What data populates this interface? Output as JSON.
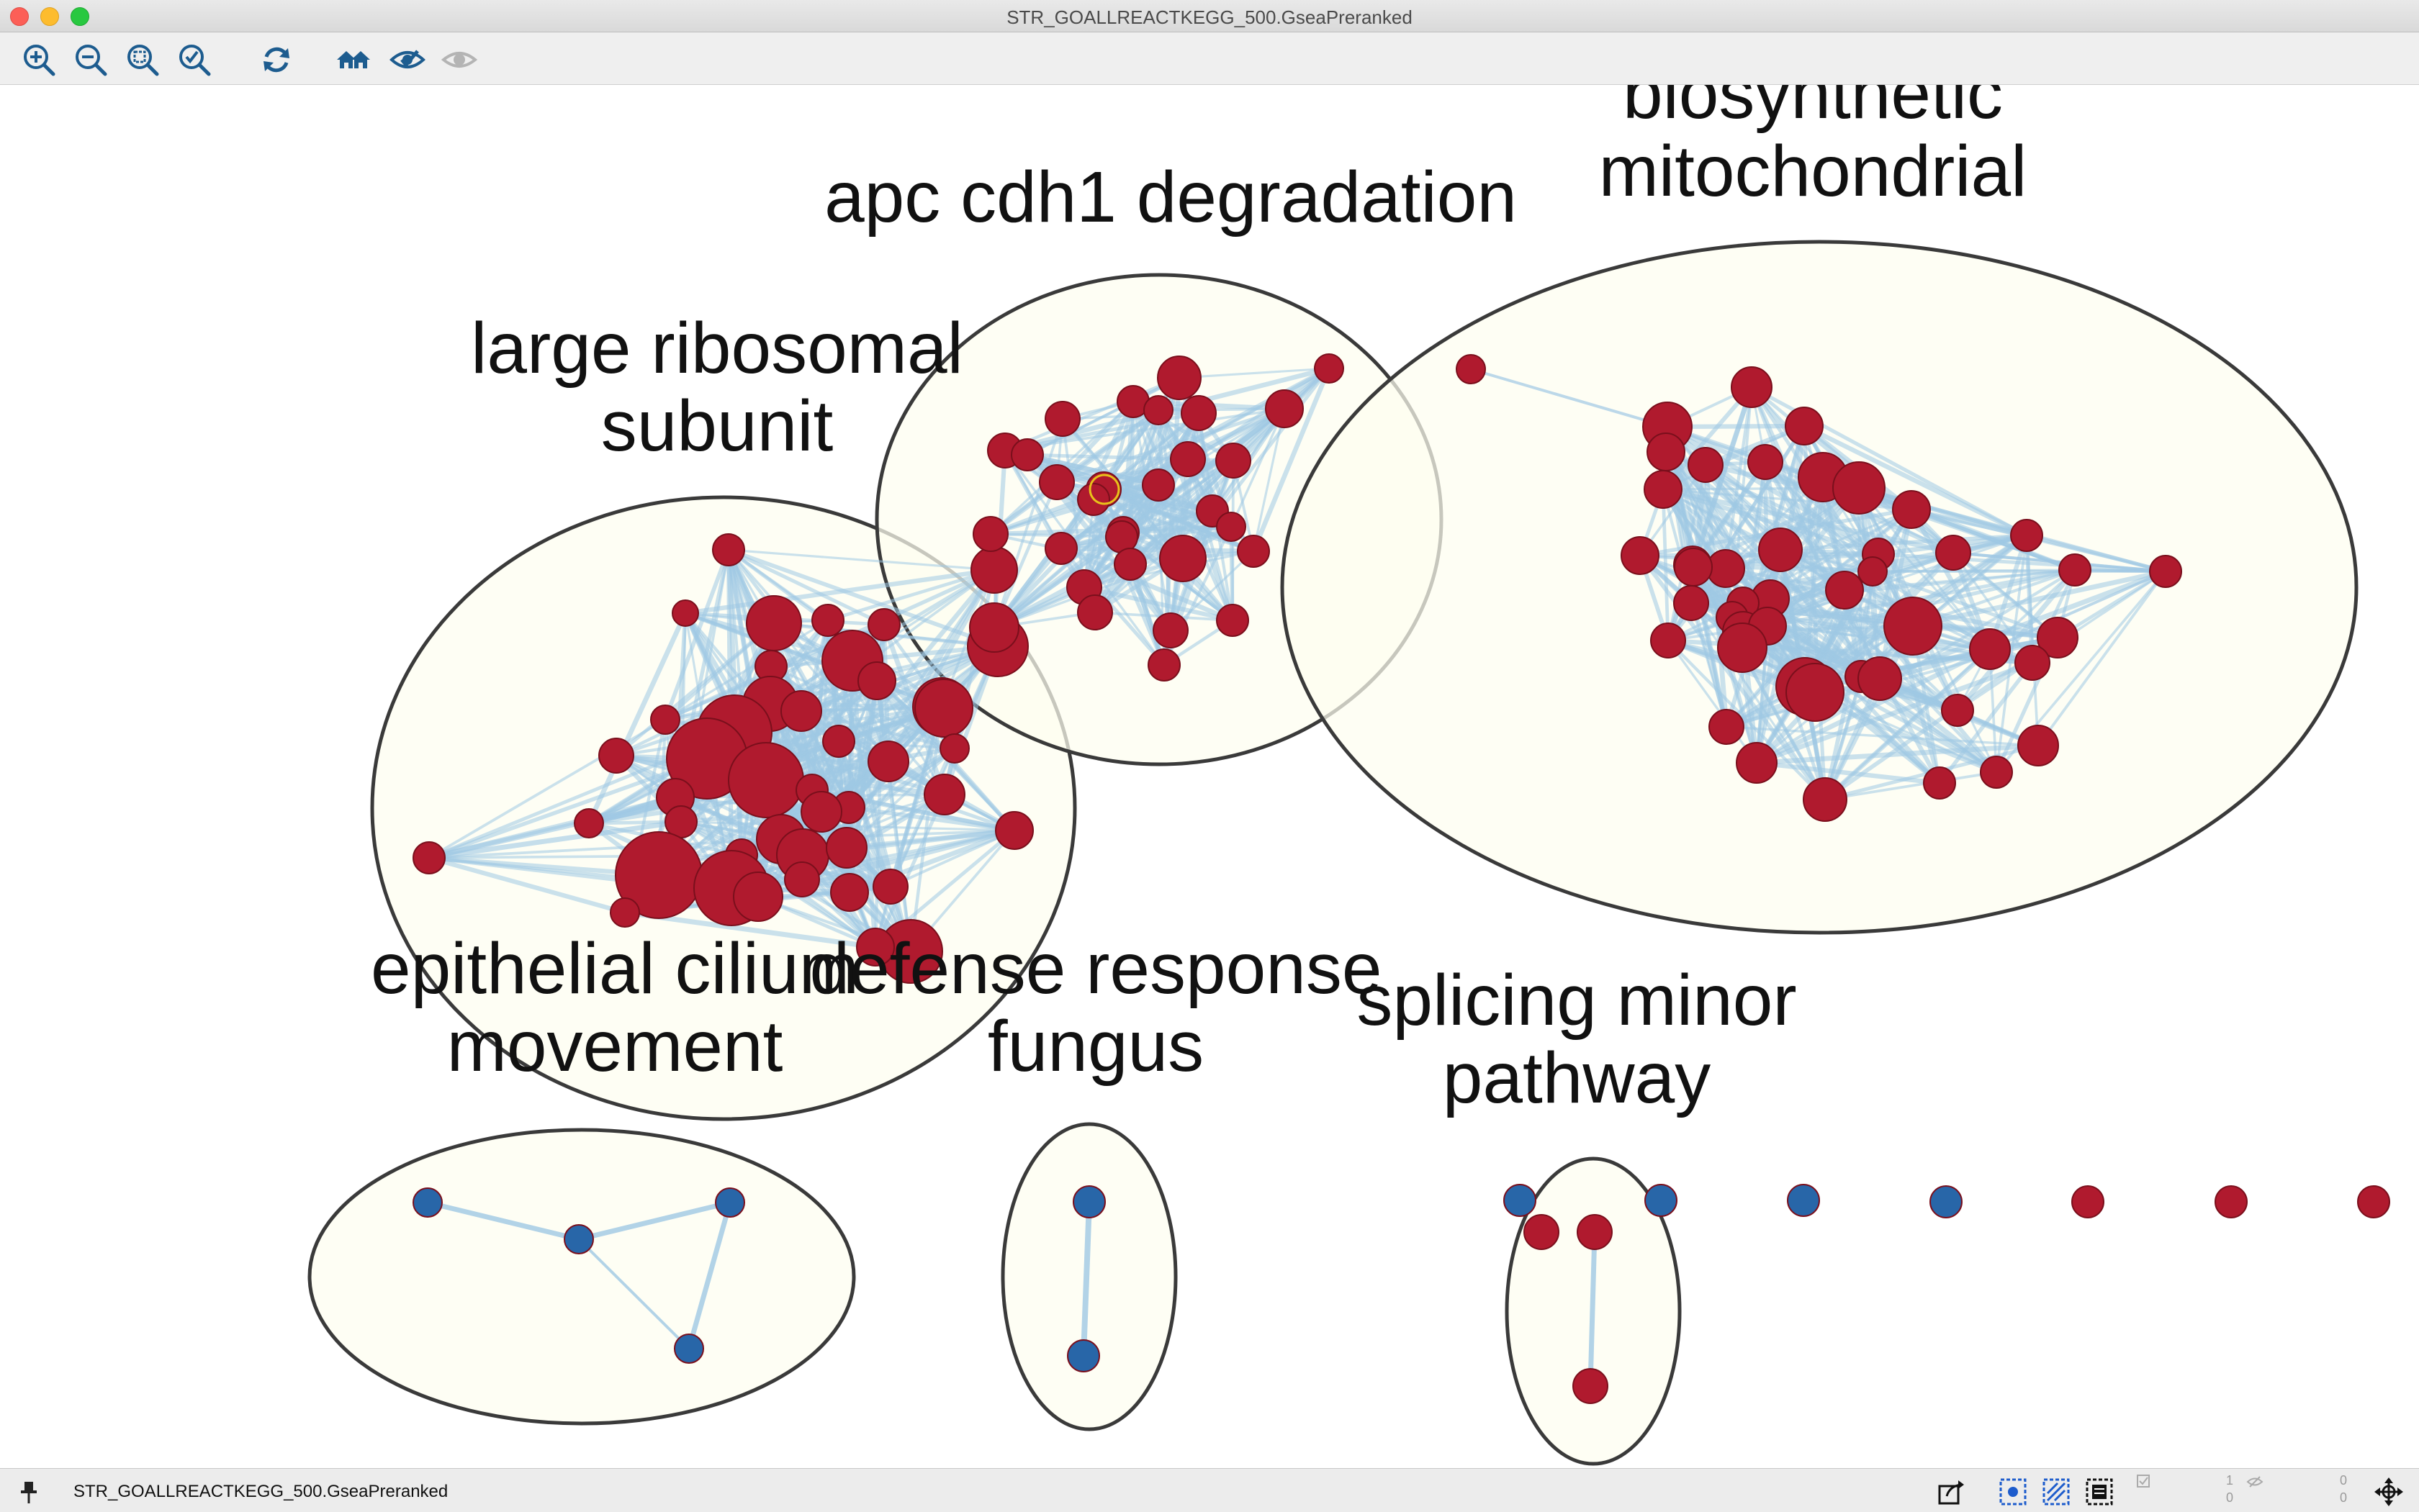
{
  "window": {
    "title": "STR_GOALLREACTKEGG_500.GseaPreranked"
  },
  "toolbar": {
    "buttons": [
      {
        "name": "zoom-in-icon"
      },
      {
        "name": "zoom-out-icon"
      },
      {
        "name": "zoom-fit-icon"
      },
      {
        "name": "zoom-selected-icon"
      },
      {
        "name": "refresh-icon"
      },
      {
        "name": "home-icon"
      },
      {
        "name": "hide-icon"
      },
      {
        "name": "show-icon"
      }
    ]
  },
  "network": {
    "colors": {
      "up": "#b01a2e",
      "down": "#2866a8",
      "edge": "#9fc8e4",
      "cluster_fill": "#fefdf0",
      "cluster_stroke": "#3a3a3a"
    },
    "clusters": [
      {
        "id": "large-ribosomal",
        "label_lines": [
          "large ribosomal",
          "subunit"
        ]
      },
      {
        "id": "apc-cdh1",
        "label_lines": [
          "apc cdh1 degradation"
        ]
      },
      {
        "id": "biosynthetic-mito",
        "label_lines": [
          "biosynthetic",
          "mitochondrial"
        ]
      },
      {
        "id": "epithelial-cilium",
        "label_lines": [
          "epithelial cilium",
          "movement"
        ]
      },
      {
        "id": "defense-fungus",
        "label_lines": [
          "defense response",
          "fungus"
        ]
      },
      {
        "id": "splicing-minor",
        "label_lines": [
          "splicing minor",
          "pathway"
        ]
      }
    ]
  },
  "status": {
    "network_name": "STR_GOALLREACTKEGG_500.GseaPreranked",
    "counts": [
      "1",
      "0",
      "0",
      "0"
    ]
  }
}
